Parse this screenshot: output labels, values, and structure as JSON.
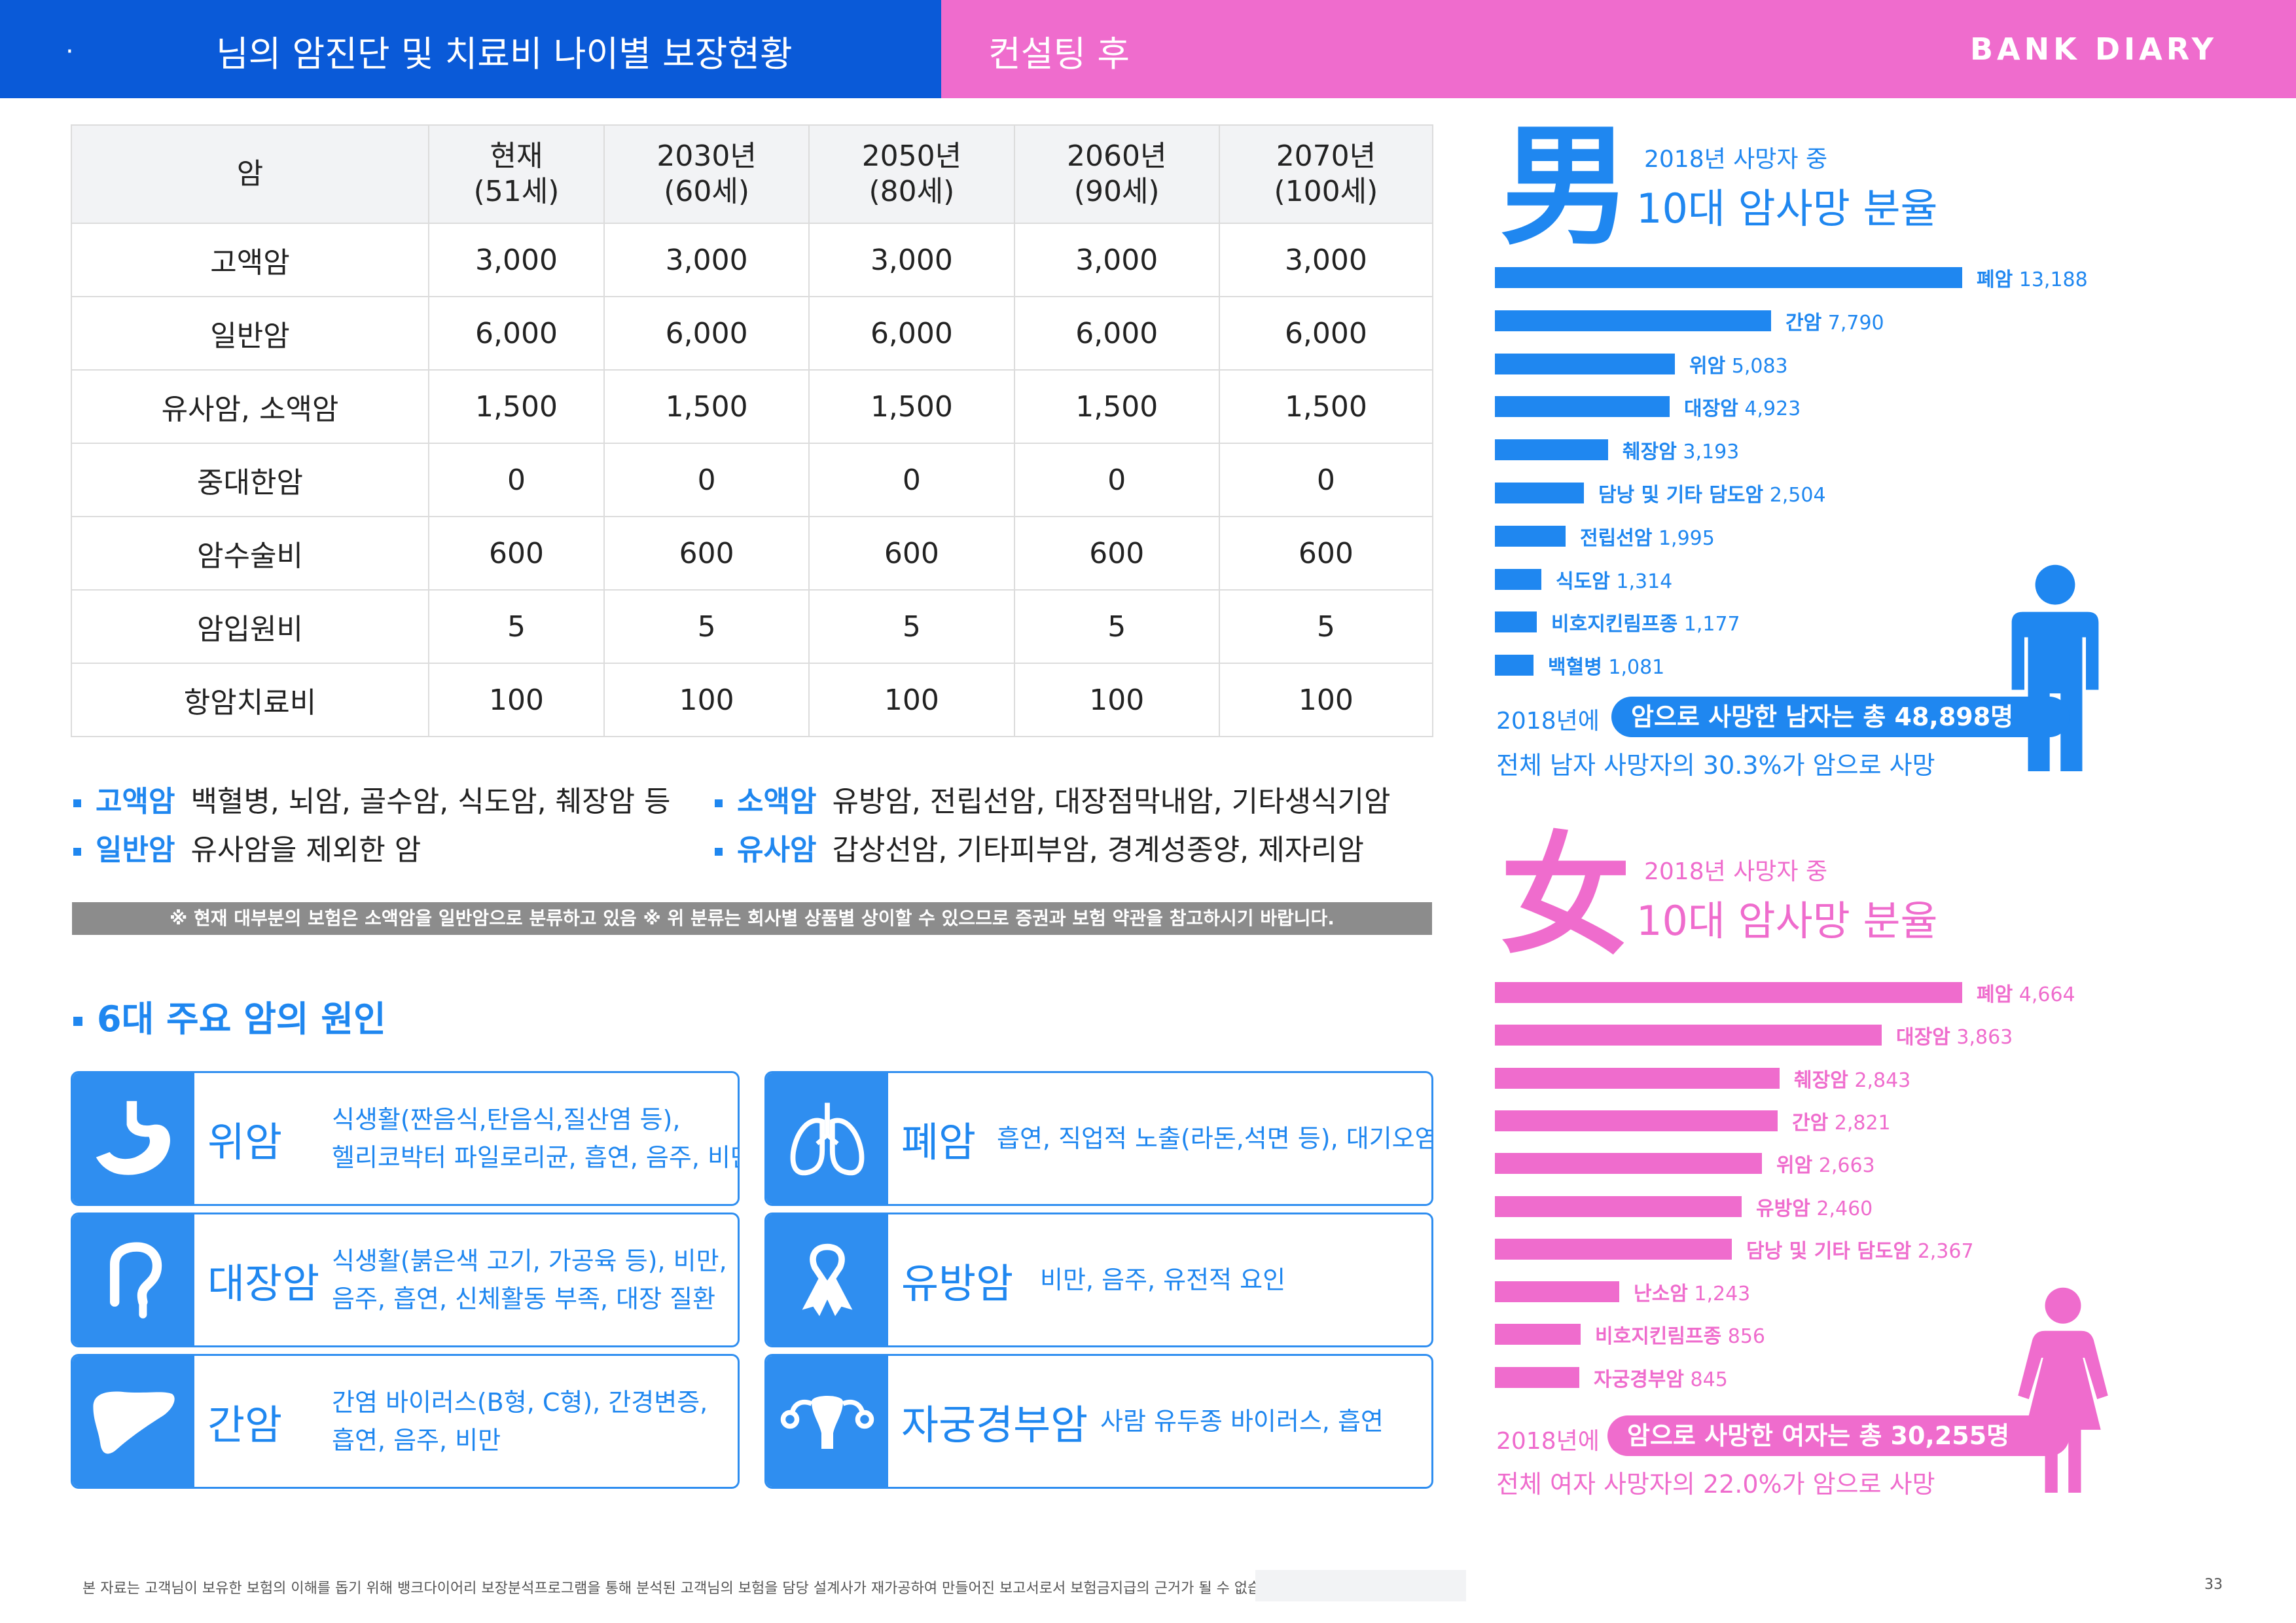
{
  "header": {
    "dot": "·",
    "title": "님의 암진단 및 치료비 나이별 보장현황",
    "subtitle": "컨설팅 후",
    "logo": "BANK DIARY",
    "color_blue": "#0a5ad8",
    "color_pink": "#ef6ccd"
  },
  "coverage_table": {
    "headers": [
      {
        "l1": "암",
        "l2": ""
      },
      {
        "l1": "현재",
        "l2": "(51세)"
      },
      {
        "l1": "2030년",
        "l2": "(60세)"
      },
      {
        "l1": "2050년",
        "l2": "(80세)"
      },
      {
        "l1": "2060년",
        "l2": "(90세)"
      },
      {
        "l1": "2070년",
        "l2": "(100세)"
      }
    ],
    "rows": [
      [
        "고액암",
        "3,000",
        "3,000",
        "3,000",
        "3,000",
        "3,000"
      ],
      [
        "일반암",
        "6,000",
        "6,000",
        "6,000",
        "6,000",
        "6,000"
      ],
      [
        "유사암, 소액암",
        "1,500",
        "1,500",
        "1,500",
        "1,500",
        "1,500"
      ],
      [
        "중대한암",
        "0",
        "0",
        "0",
        "0",
        "0"
      ],
      [
        "암수술비",
        "600",
        "600",
        "600",
        "600",
        "600"
      ],
      [
        "암입원비",
        "5",
        "5",
        "5",
        "5",
        "5"
      ],
      [
        "항암치료비",
        "100",
        "100",
        "100",
        "100",
        "100"
      ]
    ]
  },
  "definitions": [
    {
      "term": "고액암",
      "desc": "백혈병, 뇌암, 골수암, 식도암, 췌장암 등"
    },
    {
      "term": "소액암",
      "desc": "유방암, 전립선암, 대장점막내암, 기타생식기암"
    },
    {
      "term": "일반암",
      "desc": "유사암을 제외한 암"
    },
    {
      "term": "유사암",
      "desc": "갑상선암, 기타피부암, 경계성종양, 제자리암"
    }
  ],
  "notice": "※ 현재 대부분의 보험은 소액암을 일반암으로 분류하고 있음 ※ 위 분류는 회사별 상품별 상이할 수 있으므로 증권과 보험 약관을 참고하시기 바랍니다.",
  "causes": {
    "title": "6대 주요 암의 원인",
    "items": [
      {
        "icon": "stomach-icon",
        "name": "위암",
        "lines": [
          "식생활(짠음식,탄음식,질산염 등),",
          "헬리코박터 파일로리균, 흡연, 음주, 비만"
        ]
      },
      {
        "icon": "lungs-icon",
        "name": "폐암",
        "lines": [
          "흡연, 직업적 노출(라돈,석면 등), 대기오염"
        ]
      },
      {
        "icon": "intestine-icon",
        "name": "대장암",
        "lines": [
          "식생활(붉은색 고기, 가공육 등), 비만,",
          "음주, 흡연, 신체활동 부족, 대장 질환"
        ]
      },
      {
        "icon": "ribbon-icon",
        "name": "유방암",
        "lines": [
          "비만, 음주, 유전적 요인"
        ]
      },
      {
        "icon": "liver-icon",
        "name": "간암",
        "lines": [
          "간염 바이러스(B형, C형), 간경변증,",
          "흡연, 음주, 비만"
        ]
      },
      {
        "icon": "uterus-icon",
        "name": "자궁경부암",
        "lines": [
          "사람 유두종 바이러스, 흡연"
        ]
      }
    ]
  },
  "male": {
    "char": "男",
    "sub": "2018년 사망자 중",
    "title": "10대 암사망 분율",
    "color": "#1f87f0",
    "icon": "man-icon",
    "bars": [
      {
        "name": "폐암",
        "value": 13188,
        "label": "13,188"
      },
      {
        "name": "간암",
        "value": 7790,
        "label": "7,790"
      },
      {
        "name": "위암",
        "value": 5083,
        "label": "5,083"
      },
      {
        "name": "대장암",
        "value": 4923,
        "label": "4,923"
      },
      {
        "name": "췌장암",
        "value": 3193,
        "label": "3,193"
      },
      {
        "name": "담낭 및 기타 담도암",
        "value": 2504,
        "label": "2,504"
      },
      {
        "name": "전립선암",
        "value": 1995,
        "label": "1,995"
      },
      {
        "name": "식도암",
        "value": 1314,
        "label": "1,314"
      },
      {
        "name": "비호지킨림프종",
        "value": 1177,
        "label": "1,177"
      },
      {
        "name": "백혈병",
        "value": 1081,
        "label": "1,081"
      }
    ],
    "total_pre": "2018년에",
    "total": "암으로 사망한 남자는 총 48,898명",
    "note": "전체 남자 사망자의 30.3%가 암으로 사망"
  },
  "female": {
    "char": "女",
    "sub": "2018년 사망자 중",
    "title": "10대 암사망 분율",
    "color": "#ef6ccd",
    "icon": "woman-icon",
    "bars": [
      {
        "name": "폐암",
        "value": 4664,
        "label": "4,664"
      },
      {
        "name": "대장암",
        "value": 3863,
        "label": "3,863"
      },
      {
        "name": "췌장암",
        "value": 2843,
        "label": "2,843"
      },
      {
        "name": "간암",
        "value": 2821,
        "label": "2,821"
      },
      {
        "name": "위암",
        "value": 2663,
        "label": "2,663"
      },
      {
        "name": "유방암",
        "value": 2460,
        "label": "2,460"
      },
      {
        "name": "담낭 및 기타 담도암",
        "value": 2367,
        "label": "2,367"
      },
      {
        "name": "난소암",
        "value": 1243,
        "label": "1,243"
      },
      {
        "name": "비호지킨림프종",
        "value": 856,
        "label": "856"
      },
      {
        "name": "자궁경부암",
        "value": 845,
        "label": "845"
      }
    ],
    "total_pre": "2018년에",
    "total": "암으로 사망한 여자는 총 30,255명",
    "note": "전체 여자 사망자의 22.0%가 암으로 사망"
  },
  "footer": {
    "text": "본 자료는 고객님이 보유한 보험의 이해를 돕기 위해 뱅크다이어리 보장분석프로그램을 통해 분석된 고객님의 보험을 담당 설계사가 재가공하여 만들어진 보고서로서 보험금지급의 근거가 될 수 없습니다.",
    "page": "33"
  }
}
